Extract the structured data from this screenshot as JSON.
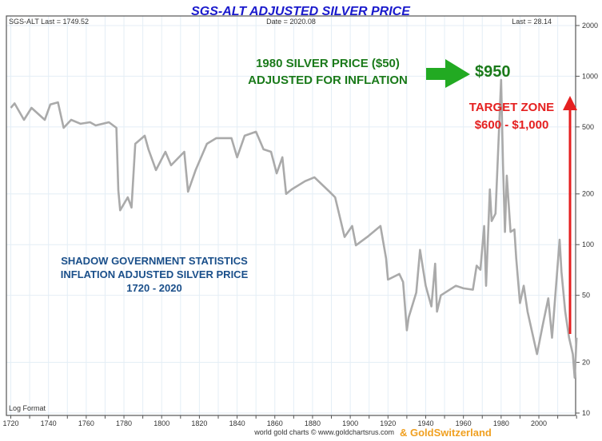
{
  "chart_data": {
    "type": "line",
    "title": "SGS-ALT ADJUSTED  SILVER PRICE",
    "header": {
      "left": "SGS-ALT Last = 1749.52",
      "center": "Date = 2020.08",
      "right": "Last = 28.14"
    },
    "scale_note": "Log Format",
    "y_scale": "log",
    "ylim": [
      10,
      2000
    ],
    "xlim": [
      1720,
      2020
    ],
    "x_ticks": [
      "1720",
      "1740",
      "1760",
      "1780",
      "1800",
      "1820",
      "1840",
      "1860",
      "1880",
      "1900",
      "1920",
      "1940",
      "1960",
      "1980",
      "2000"
    ],
    "y_ticks": [
      "2000",
      "1000",
      "500",
      "200",
      "100",
      "50",
      "20",
      "10"
    ],
    "grid": true,
    "line_color": "#aaaaaa",
    "series": [
      {
        "x": [
          1720,
          1722,
          1727,
          1731,
          1738,
          1741,
          1745,
          1748,
          1752,
          1757,
          1762,
          1765,
          1772,
          1776,
          1777,
          1778,
          1782,
          1784,
          1786,
          1791,
          1793,
          1797,
          1802,
          1805,
          1812,
          1814,
          1818,
          1824,
          1829,
          1837,
          1840,
          1844,
          1850,
          1854,
          1858,
          1861,
          1864,
          1866,
          1869,
          1876,
          1881,
          1889,
          1892,
          1897,
          1901,
          1903,
          1909,
          1916,
          1919,
          1920,
          1926,
          1928,
          1930,
          1931,
          1935,
          1937,
          1940,
          1943,
          1945,
          1946,
          1948,
          1956,
          1960,
          1965,
          1967,
          1969,
          1971,
          1972,
          1974,
          1975,
          1977,
          1980,
          1981,
          1982,
          1983,
          1985,
          1987,
          1988,
          1990,
          1992,
          1994,
          1999,
          2002,
          2005,
          2007,
          2011,
          2012,
          2014,
          2016,
          2018,
          2019,
          2020
        ],
        "y": [
          649,
          690,
          551,
          649,
          551,
          680,
          700,
          494,
          551,
          522,
          533,
          510,
          533,
          494,
          210,
          160,
          191,
          166,
          397,
          443,
          368,
          277,
          356,
          296,
          356,
          206,
          277,
          397,
          429,
          429,
          330,
          443,
          468,
          368,
          356,
          265,
          330,
          200,
          213,
          238,
          251,
          206,
          191,
          111,
          129,
          99,
          111,
          129,
          83,
          62,
          67,
          60,
          31,
          37,
          52,
          93,
          57,
          43,
          77,
          40,
          50,
          57,
          55,
          54,
          75,
          71,
          129,
          57,
          213,
          138,
          153,
          950,
          296,
          119,
          257,
          119,
          123,
          83,
          45,
          57,
          40,
          22.4,
          33,
          48,
          28,
          107,
          69,
          40,
          28,
          22.4,
          16.2,
          28
        ]
      }
    ],
    "annotations": {
      "peak_line1": "1980 SILVER PRICE ($50)",
      "peak_line2": "ADJUSTED FOR INFLATION",
      "peak_value": "$950",
      "target_line1": "TARGET ZONE",
      "target_line2": "$600 - $1,000",
      "source_line1": "SHADOW GOVERNMENT STATISTICS",
      "source_line2": "INFLATION ADJUSTED SILVER PRICE",
      "source_line3": "1720 - 2020"
    },
    "colors": {
      "title": "#1a1acc",
      "peak_text": "#1a7a1a",
      "peak_arrow": "#22aa22",
      "target": "#e52020",
      "source_text": "#1a4f8a",
      "brand": "#f0a020"
    }
  },
  "footer": {
    "credit": "world gold charts © www.goldchartsrus.com",
    "brand": "& GoldSwitzerland"
  }
}
